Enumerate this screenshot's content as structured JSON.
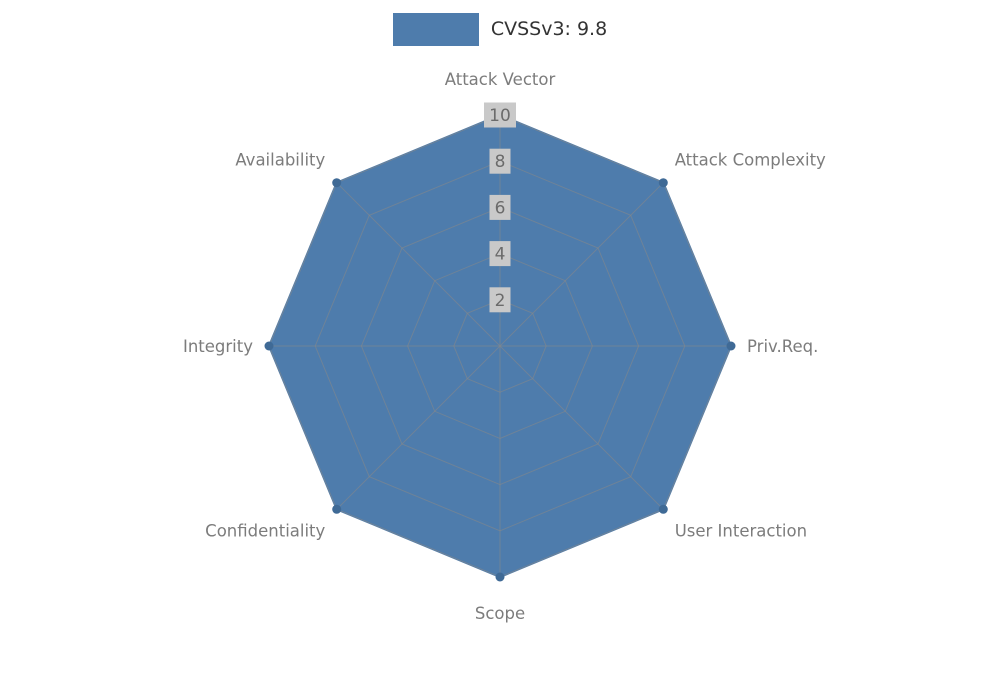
{
  "legend": {
    "label": "CVSSv3: 9.8"
  },
  "chart_data": {
    "type": "radar",
    "title": "",
    "categories": [
      "Attack Vector",
      "Attack Complexity",
      "Priv.Req.",
      "User Interaction",
      "Scope",
      "Confidentiality",
      "Integrity",
      "Availability"
    ],
    "series": [
      {
        "name": "CVSSv3: 9.8",
        "values": [
          10,
          10,
          10,
          10,
          10,
          10,
          10,
          10
        ]
      }
    ],
    "ticks": [
      2,
      4,
      6,
      8,
      10
    ],
    "rmax": 10,
    "grid": true,
    "legend_position": "top",
    "colors": {
      "fill": "#4e7cac",
      "vertex": "#3f6a96",
      "grid": "#888888",
      "axis_label": "#7c7c7c",
      "tick_text": "#6b6b6b",
      "tick_bg": "#c9c9c9",
      "legend_text": "#333333",
      "background": "#ffffff"
    }
  }
}
